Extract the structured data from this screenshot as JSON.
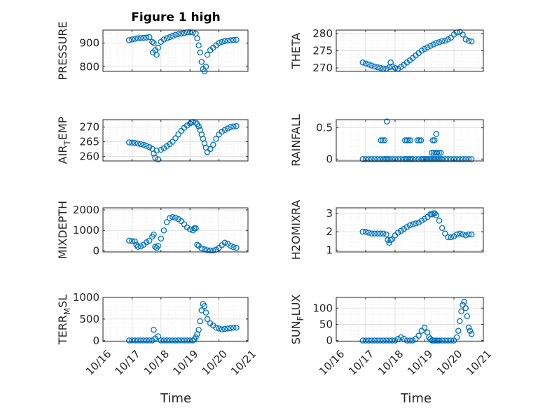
{
  "colors": {
    "series": "#0072BD",
    "axis": "#262626",
    "grid": "#d9d9d9"
  },
  "chart_data": [
    {
      "type": "scatter",
      "title": "Figure 1 high",
      "ylabel": "PRESSURE",
      "xlim": [
        16,
        21
      ],
      "ylim": [
        780,
        955
      ],
      "yticks": [
        800,
        900
      ],
      "ytick_labels": [
        "800",
        "900"
      ],
      "x": [
        16.9,
        17.0,
        17.1,
        17.2,
        17.3,
        17.4,
        17.5,
        17.6,
        17.7,
        17.72,
        17.75,
        17.8,
        17.85,
        17.9,
        18.0,
        18.1,
        18.2,
        18.3,
        18.4,
        18.5,
        18.6,
        18.7,
        18.8,
        18.9,
        19.0,
        19.1,
        19.2,
        19.25,
        19.3,
        19.35,
        19.4,
        19.45,
        19.5,
        19.55,
        19.6,
        19.7,
        19.8,
        19.9,
        20.0,
        20.1,
        20.2,
        20.3,
        20.4,
        20.5,
        20.6
      ],
      "y": [
        912,
        915,
        918,
        920,
        921,
        922,
        923,
        925,
        905,
        860,
        900,
        870,
        850,
        880,
        905,
        915,
        920,
        925,
        930,
        935,
        938,
        940,
        942,
        945,
        946,
        945,
        940,
        920,
        890,
        860,
        820,
        790,
        780,
        800,
        850,
        870,
        880,
        890,
        900,
        905,
        908,
        910,
        912,
        913,
        914
      ]
    },
    {
      "type": "scatter",
      "ylabel": "THETA",
      "xlim": [
        16,
        21
      ],
      "ylim": [
        269,
        281
      ],
      "yticks": [
        270,
        275,
        280
      ],
      "ytick_labels": [
        "270",
        "275",
        "280"
      ],
      "x": [
        16.9,
        17.0,
        17.1,
        17.2,
        17.3,
        17.4,
        17.5,
        17.6,
        17.7,
        17.8,
        17.85,
        17.9,
        18.0,
        18.1,
        18.2,
        18.3,
        18.4,
        18.5,
        18.6,
        18.7,
        18.8,
        18.9,
        19.0,
        19.1,
        19.2,
        19.3,
        19.4,
        19.5,
        19.6,
        19.7,
        19.8,
        19.9,
        20.0,
        20.1,
        20.2,
        20.3,
        20.4,
        20.5,
        20.6
      ],
      "y": [
        271.6,
        271.3,
        271.0,
        270.7,
        270.4,
        270.2,
        270.0,
        269.8,
        269.8,
        270.2,
        271.6,
        270.4,
        270.0,
        269.8,
        270.3,
        270.9,
        271.6,
        272.2,
        272.9,
        273.6,
        274.3,
        275.0,
        275.5,
        276.0,
        276.4,
        276.8,
        277.2,
        277.5,
        277.8,
        277.9,
        278.3,
        278.8,
        279.7,
        280.3,
        280.5,
        279.7,
        278.3,
        277.9,
        277.7
      ]
    },
    {
      "type": "scatter",
      "ylabel": "AIR_TEMP",
      "xlim": [
        16,
        21
      ],
      "ylim": [
        258.5,
        272.5
      ],
      "yticks": [
        260,
        265,
        270
      ],
      "ytick_labels": [
        "260",
        "265",
        "270"
      ],
      "x": [
        16.9,
        17.0,
        17.1,
        17.2,
        17.3,
        17.4,
        17.5,
        17.6,
        17.7,
        17.75,
        17.8,
        17.85,
        17.9,
        18.0,
        18.1,
        18.2,
        18.3,
        18.4,
        18.5,
        18.6,
        18.7,
        18.8,
        18.9,
        19.0,
        19.05,
        19.1,
        19.2,
        19.25,
        19.3,
        19.35,
        19.4,
        19.45,
        19.5,
        19.55,
        19.6,
        19.7,
        19.8,
        19.9,
        20.0,
        20.1,
        20.2,
        20.3,
        20.4,
        20.5,
        20.6
      ],
      "y": [
        264.8,
        264.7,
        264.6,
        264.4,
        264.2,
        264.0,
        263.6,
        263.2,
        262.6,
        261.0,
        259.6,
        262.0,
        259.0,
        262.3,
        262.8,
        263.5,
        264.2,
        265.0,
        266.2,
        267.5,
        268.7,
        269.7,
        270.5,
        271.2,
        271.6,
        271.7,
        271.5,
        271.0,
        270.2,
        269.0,
        267.5,
        266.0,
        264.5,
        263.0,
        261.5,
        262.5,
        264.0,
        266.0,
        267.5,
        268.4,
        269.0,
        269.5,
        270.0,
        270.2,
        270.3
      ]
    },
    {
      "type": "scatter",
      "ylabel": "RAINFALL",
      "xlim": [
        16,
        21
      ],
      "ylim": [
        -0.03,
        0.63
      ],
      "yticks": [
        0,
        0.5
      ],
      "ytick_labels": [
        "0",
        "0.5"
      ],
      "x": [
        16.9,
        17.0,
        17.1,
        17.2,
        17.3,
        17.4,
        17.5,
        17.6,
        17.65,
        17.7,
        17.75,
        17.8,
        17.9,
        18.0,
        18.1,
        18.2,
        18.3,
        18.35,
        18.4,
        18.45,
        18.5,
        18.55,
        18.6,
        18.7,
        18.8,
        18.9,
        18.95,
        19.0,
        19.05,
        19.1,
        19.15,
        19.2,
        19.25,
        19.3,
        19.35,
        19.4,
        19.45,
        19.5,
        19.55,
        19.6,
        19.7,
        19.8,
        19.9,
        20.0,
        20.1,
        20.2,
        20.3,
        20.4,
        20.5,
        20.6,
        17.52,
        17.58,
        17.64,
        17.72,
        18.34,
        18.4,
        18.46,
        18.52,
        18.76,
        18.82,
        18.88,
        19.25,
        19.31,
        19.37,
        19.43,
        19.49,
        19.55,
        19.28,
        19.4,
        19.34
      ],
      "y": [
        0,
        0,
        0,
        0,
        0,
        0,
        0,
        0,
        0,
        0,
        0,
        0,
        0,
        0,
        0,
        0,
        0,
        0,
        0,
        0,
        0,
        0,
        0,
        0,
        0,
        0,
        0,
        0,
        0,
        0,
        0,
        0,
        0,
        0,
        0,
        0,
        0,
        0,
        0,
        0,
        0,
        0,
        0,
        0,
        0,
        0,
        0,
        0,
        0,
        0,
        0.3,
        0.3,
        0.3,
        0.6,
        0.3,
        0.3,
        0.3,
        0.3,
        0.3,
        0.3,
        0.3,
        0.1,
        0.1,
        0.1,
        0.1,
        0.1,
        0.1,
        0.3,
        0.4,
        0.3
      ]
    },
    {
      "type": "scatter",
      "ylabel": "MIXDEPTH",
      "xlim": [
        16,
        21
      ],
      "ylim": [
        -50,
        2100
      ],
      "yticks": [
        0,
        1000,
        2000
      ],
      "ytick_labels": [
        "0",
        "1000",
        "2000"
      ],
      "x": [
        16.9,
        17.0,
        17.1,
        17.15,
        17.2,
        17.3,
        17.4,
        17.5,
        17.6,
        17.7,
        17.75,
        17.8,
        17.85,
        17.9,
        18.0,
        18.1,
        18.2,
        18.3,
        18.4,
        18.5,
        18.6,
        18.7,
        18.8,
        18.9,
        19.0,
        19.1,
        19.15,
        19.2,
        19.25,
        19.3,
        19.4,
        19.5,
        19.6,
        19.7,
        19.8,
        19.9,
        20.0,
        20.1,
        20.2,
        20.3,
        20.4,
        20.5,
        20.6
      ],
      "y": [
        500,
        480,
        460,
        300,
        200,
        220,
        300,
        420,
        500,
        700,
        800,
        200,
        150,
        250,
        600,
        1000,
        1400,
        1600,
        1650,
        1620,
        1550,
        1450,
        1300,
        1150,
        1050,
        1000,
        1100,
        1100,
        300,
        250,
        120,
        80,
        30,
        20,
        20,
        60,
        150,
        280,
        400,
        350,
        250,
        180,
        150
      ]
    },
    {
      "type": "scatter",
      "ylabel": "H2OMIXRA",
      "xlim": [
        16,
        21
      ],
      "ylim": [
        0.9,
        3.3
      ],
      "yticks": [
        1,
        2,
        3
      ],
      "ytick_labels": [
        "1",
        "2",
        "3"
      ],
      "x": [
        16.9,
        17.0,
        17.1,
        17.2,
        17.3,
        17.4,
        17.5,
        17.6,
        17.7,
        17.75,
        17.8,
        17.85,
        17.9,
        18.0,
        18.1,
        18.2,
        18.3,
        18.4,
        18.5,
        18.6,
        18.7,
        18.8,
        18.9,
        19.0,
        19.1,
        19.2,
        19.25,
        19.3,
        19.35,
        19.4,
        19.5,
        19.6,
        19.7,
        19.8,
        19.9,
        20.0,
        20.1,
        20.2,
        20.3,
        20.4,
        20.5,
        20.6
      ],
      "y": [
        2.0,
        2.0,
        1.95,
        1.9,
        1.9,
        1.9,
        1.9,
        1.9,
        1.85,
        1.55,
        1.4,
        1.55,
        1.6,
        1.8,
        1.95,
        2.05,
        2.15,
        2.25,
        2.35,
        2.4,
        2.45,
        2.5,
        2.6,
        2.7,
        2.8,
        2.95,
        2.95,
        3.0,
        3.0,
        2.9,
        2.6,
        2.2,
        1.9,
        1.7,
        1.7,
        1.75,
        1.85,
        1.9,
        1.85,
        1.8,
        1.85,
        1.85
      ]
    },
    {
      "type": "scatter",
      "ylabel": "TERR_MSL",
      "xlim": [
        16,
        21
      ],
      "ylim": [
        -20,
        1000
      ],
      "yticks": [
        0,
        500,
        1000
      ],
      "ytick_labels": [
        "0",
        "500",
        "1000"
      ],
      "x": [
        16.9,
        17.0,
        17.1,
        17.2,
        17.3,
        17.4,
        17.5,
        17.6,
        17.7,
        17.75,
        17.8,
        17.9,
        18.0,
        18.1,
        18.2,
        18.3,
        18.4,
        18.5,
        18.6,
        18.7,
        18.8,
        18.9,
        19.0,
        19.1,
        19.15,
        19.2,
        19.25,
        19.3,
        19.35,
        19.4,
        19.45,
        19.5,
        19.55,
        19.6,
        19.7,
        19.8,
        19.9,
        20.0,
        20.1,
        20.2,
        20.3,
        20.4,
        20.5,
        20.6
      ],
      "y": [
        5,
        5,
        5,
        5,
        5,
        5,
        5,
        5,
        5,
        250,
        50,
        100,
        5,
        5,
        5,
        5,
        5,
        5,
        5,
        5,
        5,
        5,
        5,
        5,
        30,
        80,
        150,
        250,
        450,
        700,
        850,
        800,
        650,
        500,
        400,
        350,
        300,
        280,
        260,
        270,
        280,
        290,
        300,
        300
      ]
    },
    {
      "type": "scatter",
      "ylabel": "SUN_FLUX",
      "xlim": [
        16,
        21
      ],
      "ylim": [
        -3,
        133
      ],
      "yticks": [
        0,
        50,
        100
      ],
      "ytick_labels": [
        "0",
        "50",
        "100"
      ],
      "x": [
        16.9,
        17.0,
        17.1,
        17.2,
        17.3,
        17.4,
        17.5,
        17.6,
        17.7,
        17.8,
        17.9,
        18.0,
        18.1,
        18.2,
        18.3,
        18.4,
        18.5,
        18.6,
        18.7,
        18.8,
        18.9,
        19.0,
        19.1,
        19.15,
        19.2,
        19.25,
        19.3,
        19.35,
        19.4,
        19.45,
        19.5,
        19.6,
        19.7,
        19.8,
        19.9,
        20.0,
        20.1,
        20.15,
        20.2,
        20.25,
        20.3,
        20.35,
        20.4,
        20.45,
        20.5,
        20.55,
        20.6
      ],
      "y": [
        0,
        0,
        0,
        0,
        0,
        0,
        0,
        0,
        0,
        0,
        0,
        0,
        5,
        10,
        5,
        0,
        0,
        0,
        5,
        15,
        30,
        40,
        25,
        10,
        5,
        0,
        0,
        0,
        0,
        0,
        0,
        0,
        0,
        0,
        0,
        0,
        10,
        30,
        60,
        90,
        110,
        120,
        100,
        75,
        40,
        30,
        20
      ]
    }
  ],
  "xaxis": {
    "label": "Time",
    "ticks": [
      16,
      17,
      18,
      19,
      20,
      21
    ],
    "tick_labels": [
      "10/16",
      "10/17",
      "10/18",
      "10/19",
      "10/20",
      "10/21"
    ]
  }
}
